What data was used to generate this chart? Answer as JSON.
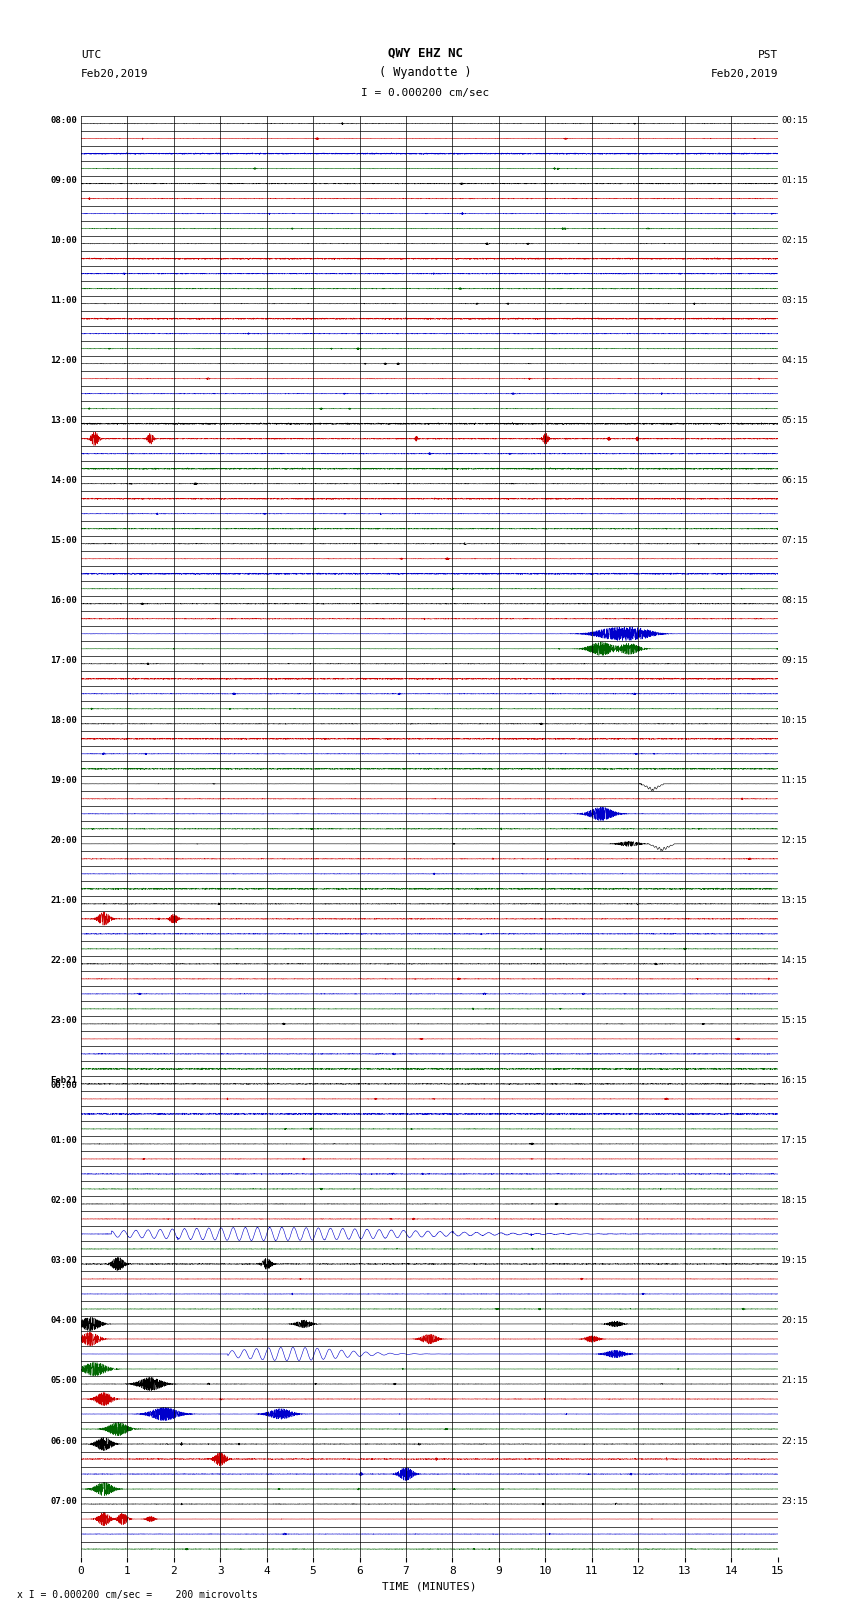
{
  "title_line1": "QWY EHZ NC",
  "title_line2": "( Wyandotte )",
  "scale_text": "I = 0.000200 cm/sec",
  "left_label_line1": "UTC",
  "left_label_line2": "Feb20,2019",
  "right_label_line1": "PST",
  "right_label_line2": "Feb20,2019",
  "bottom_label": "TIME (MINUTES)",
  "footnote": "x I = 0.000200 cm/sec =    200 microvolts",
  "utc_times": [
    "08:00",
    "09:00",
    "10:00",
    "11:00",
    "12:00",
    "13:00",
    "14:00",
    "15:00",
    "16:00",
    "17:00",
    "18:00",
    "19:00",
    "20:00",
    "21:00",
    "22:00",
    "23:00",
    "Feb21\n00:00",
    "01:00",
    "02:00",
    "03:00",
    "04:00",
    "05:00",
    "06:00",
    "07:00"
  ],
  "pst_times": [
    "00:15",
    "01:15",
    "02:15",
    "03:15",
    "04:15",
    "05:15",
    "06:15",
    "07:15",
    "08:15",
    "09:15",
    "10:15",
    "11:15",
    "12:15",
    "13:15",
    "14:15",
    "15:15",
    "16:15",
    "17:15",
    "18:15",
    "19:15",
    "20:15",
    "21:15",
    "22:15",
    "23:15"
  ],
  "num_hours": 24,
  "rows_per_hour": 4,
  "x_min": 0,
  "x_max": 15,
  "x_ticks": [
    0,
    1,
    2,
    3,
    4,
    5,
    6,
    7,
    8,
    9,
    10,
    11,
    12,
    13,
    14,
    15
  ],
  "background_color": "#ffffff",
  "trace_colors": [
    "#000000",
    "#cc0000",
    "#0000cc",
    "#006600"
  ],
  "figure_width": 8.5,
  "figure_height": 16.13
}
